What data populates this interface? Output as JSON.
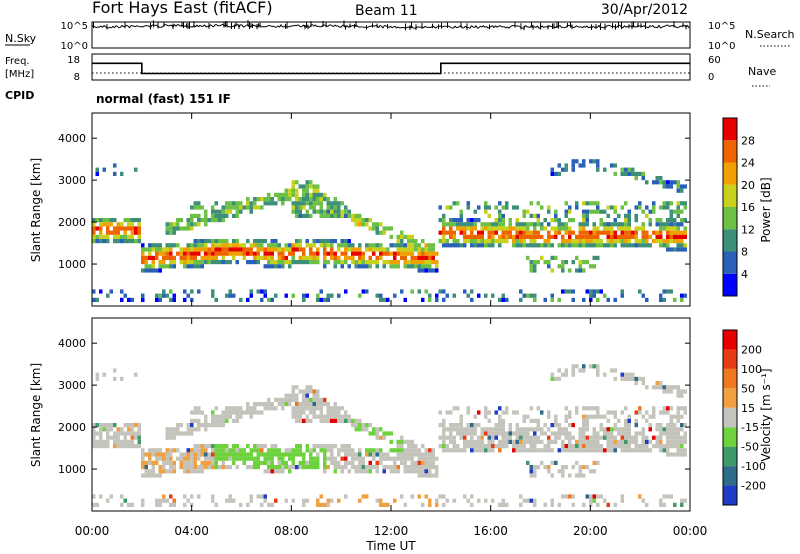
{
  "header": {
    "site": "Fort Hays East (fitACF)",
    "beam": "Beam 11",
    "date": "30/Apr/2012"
  },
  "noise_panel": {
    "left_label": "N.Sky",
    "left_ticks": [
      "10^5",
      "10^0"
    ],
    "right_label": "N.Search",
    "right_ticks": [
      "10^5",
      "10^0"
    ]
  },
  "freq_panel": {
    "left_label_line1": "Freq.",
    "left_label_line2": "[MHz]",
    "left_ticks": [
      "18",
      "8"
    ],
    "right_label": "Nave",
    "right_ticks": [
      "60",
      "0"
    ],
    "cpid_label": "CPID",
    "cpid_text": "normal (fast) 151 IF"
  },
  "chart_data": [
    {
      "type": "line",
      "name": "sky-noise-timeseries",
      "x": [
        0,
        2,
        4,
        6,
        8,
        10,
        12,
        14,
        16,
        18,
        20,
        22,
        24
      ],
      "y_log10": [
        4.3,
        4.4,
        4.55,
        4.55,
        4.5,
        4.45,
        4.3,
        4.25,
        4.3,
        4.3,
        4.35,
        4.35,
        4.35
      ],
      "ylim_log10": [
        0,
        5.3
      ]
    },
    {
      "type": "line",
      "name": "frequency-timeseries",
      "x": [
        0,
        2,
        2,
        14,
        14,
        24
      ],
      "y": [
        14.4,
        14.4,
        10.5,
        10.5,
        14.4,
        14.4
      ],
      "ylim": [
        8,
        18
      ],
      "nave_y": [
        12,
        12,
        12,
        12,
        12,
        12
      ]
    },
    {
      "type": "heatmap",
      "name": "power",
      "xlabel": "Time UT",
      "ylabel": "Slant Range [km]",
      "xlim": [
        0,
        24
      ],
      "ylim": [
        0,
        4600
      ],
      "yticks": [
        1000,
        2000,
        3000,
        4000
      ],
      "colorbar": {
        "label": "Power [dB]",
        "ticks": [
          "4",
          "8",
          "12",
          "16",
          "20",
          "24",
          "28"
        ],
        "colors": [
          "#0000ff",
          "#2a60b8",
          "#3d8f7a",
          "#6dc046",
          "#c8d21c",
          "#f0a000",
          "#f06400",
          "#e60000"
        ]
      }
    },
    {
      "type": "heatmap",
      "name": "velocity",
      "xlabel": "Time UT",
      "ylabel": "Slant Range [km]",
      "xlim": [
        0,
        24
      ],
      "ylim": [
        0,
        4600
      ],
      "yticks": [
        1000,
        2000,
        3000,
        4000
      ],
      "xticks": [
        "00:00",
        "04:00",
        "08:00",
        "12:00",
        "16:00",
        "20:00",
        "00:00"
      ],
      "colorbar": {
        "label": "Velocity [m s⁻¹]",
        "ticks": [
          "200",
          "100",
          "50",
          "15",
          "-15",
          "-50",
          "-100",
          "-200"
        ],
        "colors": [
          "#1e3cc8",
          "#2e6a8a",
          "#3d9b6a",
          "#6ed23c",
          "#c4c4bc",
          "#f0a040",
          "#f07820",
          "#e83c14",
          "#e60000"
        ]
      }
    }
  ]
}
